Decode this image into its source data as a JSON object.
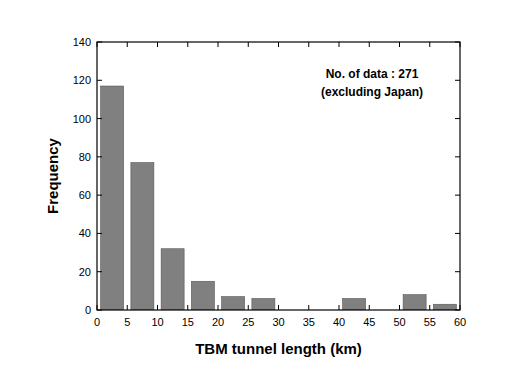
{
  "chart_data": {
    "type": "histogram",
    "x_label": "TBM tunnel length (km)",
    "y_label": "Frequency",
    "annotations": [
      "No. of data : 271",
      "(excluding Japan)"
    ],
    "bins": [
      0,
      5,
      10,
      15,
      20,
      25,
      30,
      35,
      40,
      45,
      50,
      55,
      60
    ],
    "values": [
      117,
      77,
      32,
      15,
      7,
      6,
      0,
      0,
      6,
      0,
      8,
      3
    ],
    "color": "#808080",
    "xlim": [
      0,
      60
    ],
    "xticks": [
      0,
      5,
      10,
      15,
      20,
      25,
      30,
      35,
      40,
      45,
      50,
      55,
      60
    ],
    "ylim": [
      0,
      140
    ],
    "yticks": [
      0,
      20,
      40,
      60,
      80,
      100,
      120,
      140
    ],
    "grid": false
  }
}
